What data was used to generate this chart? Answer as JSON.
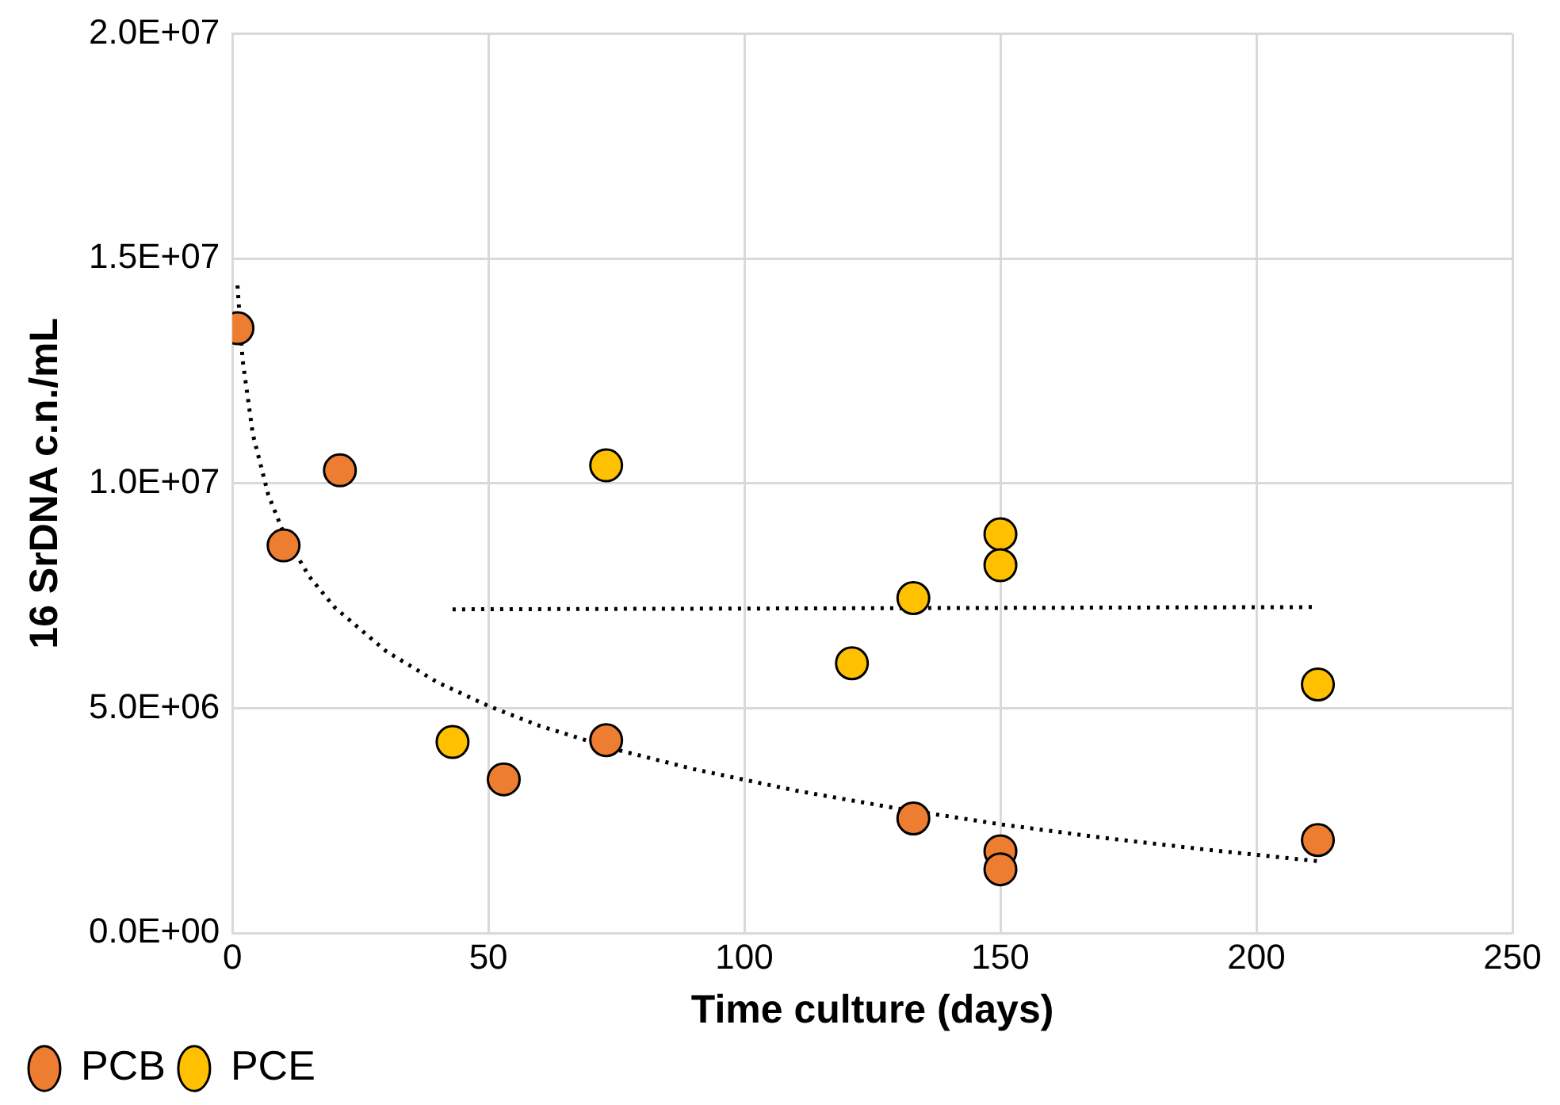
{
  "chart_data": {
    "type": "scatter",
    "xlabel": "Time culture (days)",
    "ylabel": "16 SrDNA c.n./mL",
    "xlim": [
      0,
      250
    ],
    "xticks": [
      0,
      50,
      100,
      150,
      200,
      250
    ],
    "ylim": [
      0,
      20000000
    ],
    "yticks": [
      {
        "value": 0,
        "label": "0.0E+00"
      },
      {
        "value": 5000000,
        "label": "5.0E+06"
      },
      {
        "value": 10000000,
        "label": "1.0E+07"
      },
      {
        "value": 15000000,
        "label": "1.5E+07"
      },
      {
        "value": 20000000,
        "label": "2.0E+07"
      }
    ],
    "grid": true,
    "legend": "bottom left",
    "marker": "circle",
    "series": [
      {
        "name": "PCB",
        "color": "#ed7d31",
        "x": [
          1,
          10,
          21,
          53,
          73,
          133,
          150,
          150,
          212
        ],
        "values": [
          13450000,
          8620000,
          10290000,
          3420000,
          4290000,
          2550000,
          1820000,
          1420000,
          2070000
        ]
      },
      {
        "name": "PCE",
        "color": "#ffc000",
        "x": [
          43,
          73,
          121,
          133,
          150,
          150,
          212
        ],
        "values": [
          4250000,
          10400000,
          6000000,
          7450000,
          8870000,
          8180000,
          5530000
        ]
      },
      {
        "type": "line",
        "color": "#000000",
        "marker": "none",
        "line_style": "dotted",
        "x": [
          1,
          2,
          4,
          7,
          10,
          15,
          20,
          30,
          40,
          50,
          60,
          75,
          90,
          110,
          130,
          150,
          170,
          190,
          212
        ],
        "values": [
          14400000,
          12740000,
          11090000,
          9750000,
          8900000,
          7930000,
          7240000,
          6270000,
          5580000,
          5050000,
          4610000,
          4080000,
          3650000,
          3170000,
          2770000,
          2420000,
          2120000,
          1860000,
          1600000
        ]
      },
      {
        "type": "line",
        "color": "#000000",
        "marker": "none",
        "line_style": "dotted",
        "x": [
          43,
          212
        ],
        "values": [
          7200000,
          7250000
        ]
      }
    ]
  }
}
